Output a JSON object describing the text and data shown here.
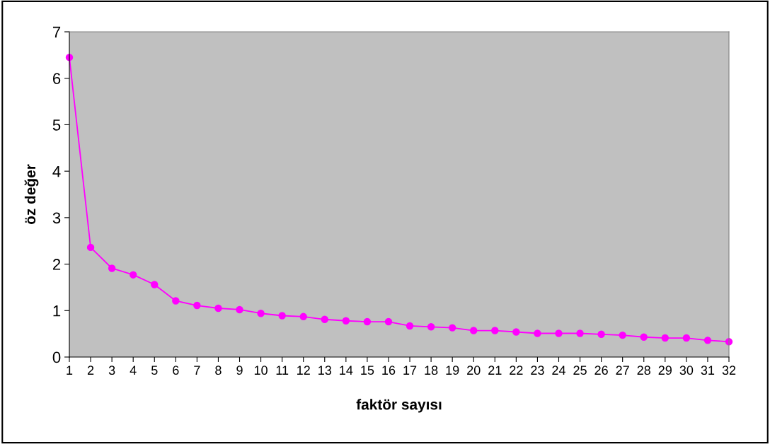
{
  "chart_data": {
    "type": "line",
    "xlabel": "faktör sayısı",
    "ylabel": "öz değer",
    "categories": [
      "1",
      "2",
      "3",
      "4",
      "5",
      "6",
      "7",
      "8",
      "9",
      "10",
      "11",
      "12",
      "13",
      "14",
      "15",
      "16",
      "17",
      "18",
      "19",
      "20",
      "21",
      "22",
      "23",
      "24",
      "25",
      "26",
      "27",
      "28",
      "29",
      "30",
      "31",
      "32"
    ],
    "series": [
      {
        "color": "#ff00ff",
        "values": [
          6.45,
          2.36,
          1.91,
          1.77,
          1.56,
          1.21,
          1.11,
          1.05,
          1.02,
          0.94,
          0.89,
          0.87,
          0.81,
          0.78,
          0.76,
          0.76,
          0.67,
          0.65,
          0.63,
          0.57,
          0.57,
          0.54,
          0.51,
          0.51,
          0.51,
          0.49,
          0.47,
          0.43,
          0.41,
          0.41,
          0.36,
          0.33
        ]
      }
    ],
    "ylim": [
      0,
      7
    ],
    "yticks": [
      0,
      1,
      2,
      3,
      4,
      5,
      6,
      7
    ],
    "marker": "circle",
    "line_style": "solid"
  }
}
